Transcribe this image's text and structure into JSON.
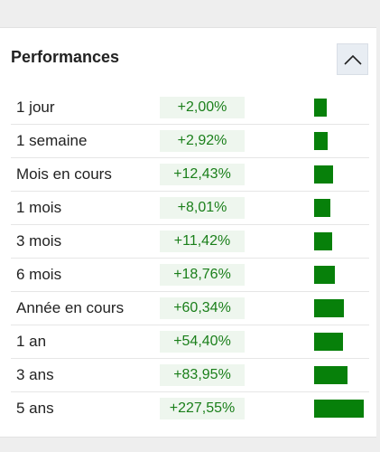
{
  "panel": {
    "title": "Performances",
    "collapse_icon": "chevron-up-icon"
  },
  "colors": {
    "value_text": "#1a7f1a",
    "value_bg": "#eef6ee",
    "bar": "#07800a"
  },
  "rows": [
    {
      "label": "1 jour",
      "value": "+2,00%",
      "pct": 2.0
    },
    {
      "label": "1 semaine",
      "value": "+2,92%",
      "pct": 2.92
    },
    {
      "label": "Mois en cours",
      "value": "+12,43%",
      "pct": 12.43
    },
    {
      "label": "1 mois",
      "value": "+8,01%",
      "pct": 8.01
    },
    {
      "label": "3 mois",
      "value": "+11,42%",
      "pct": 11.42
    },
    {
      "label": "6 mois",
      "value": "+18,76%",
      "pct": 18.76
    },
    {
      "label": "Année en cours",
      "value": "+60,34%",
      "pct": 60.34
    },
    {
      "label": "1 an",
      "value": "+54,40%",
      "pct": 54.4
    },
    {
      "label": "3 ans",
      "value": "+83,95%",
      "pct": 83.95
    },
    {
      "label": "5 ans",
      "value": "+227,55%",
      "pct": 227.55
    }
  ]
}
